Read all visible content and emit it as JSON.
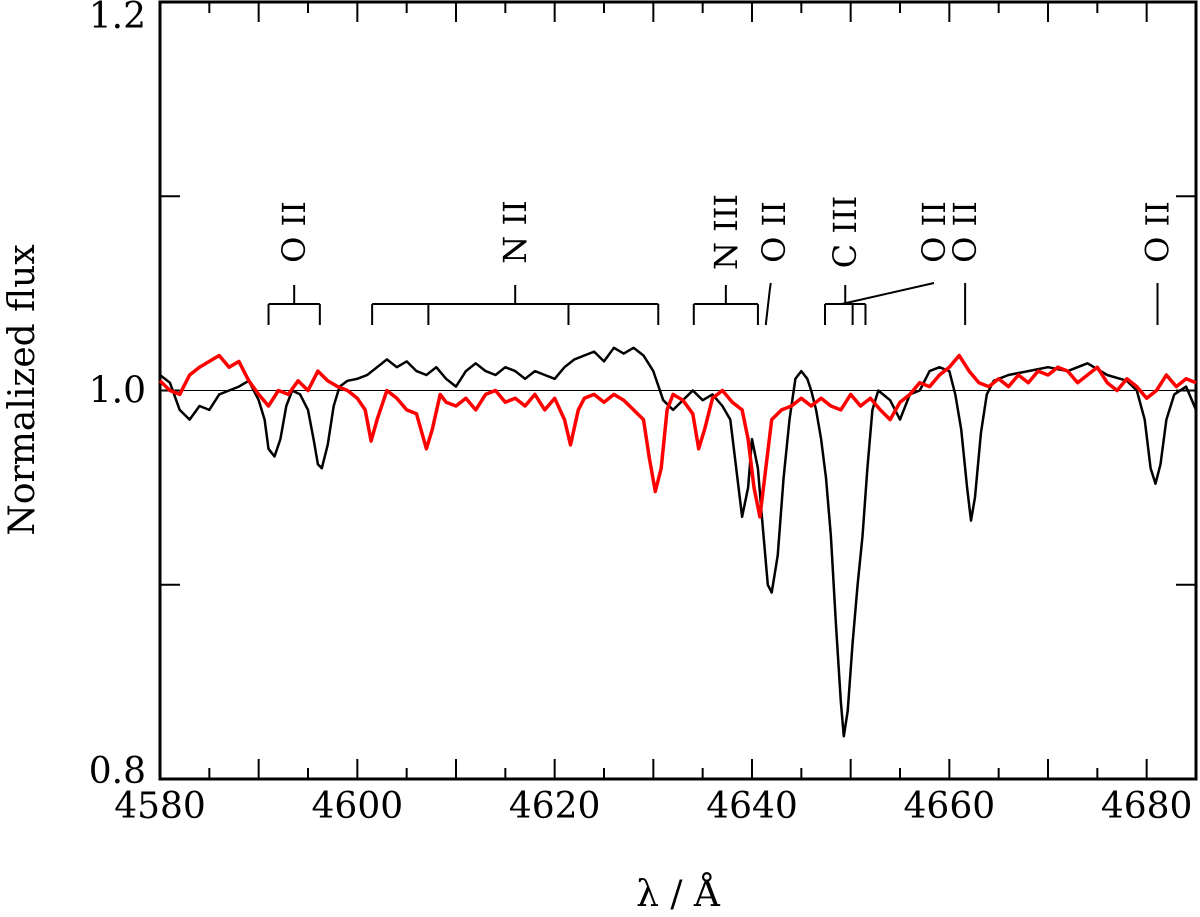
{
  "chart_data": {
    "type": "line",
    "title": "",
    "xlabel": "λ / Å",
    "ylabel": "Normalized flux",
    "xlim": [
      4580,
      4685
    ],
    "ylim": [
      0.8,
      1.2
    ],
    "x_ticks": [
      {
        "value": 4580,
        "label": "4580"
      },
      {
        "value": 4600,
        "label": "4600"
      },
      {
        "value": 4620,
        "label": "4620"
      },
      {
        "value": 4640,
        "label": "4640"
      },
      {
        "value": 4660,
        "label": "4660"
      },
      {
        "value": 4680,
        "label": "4680"
      }
    ],
    "y_ticks": [
      {
        "value": 0.8,
        "label": "0.8"
      },
      {
        "value": 1.0,
        "label": "1.0"
      },
      {
        "value": 1.2,
        "label": "1.2"
      }
    ],
    "continuum": 1.0,
    "grid": false,
    "legend": "none",
    "series": [
      {
        "color": "#000000",
        "points": [
          [
            4580,
            1.008
          ],
          [
            4581,
            1.004
          ],
          [
            4582,
            0.99
          ],
          [
            4583,
            0.985
          ],
          [
            4584,
            0.992
          ],
          [
            4585,
            0.99
          ],
          [
            4586,
            0.998
          ],
          [
            4587,
            1.0
          ],
          [
            4588,
            1.002
          ],
          [
            4589,
            1.005
          ],
          [
            4590,
            0.995
          ],
          [
            4590.6,
            0.985
          ],
          [
            4591,
            0.97
          ],
          [
            4591.6,
            0.966
          ],
          [
            4592.2,
            0.975
          ],
          [
            4592.8,
            0.992
          ],
          [
            4593.4,
            1.0
          ],
          [
            4594.2,
            0.998
          ],
          [
            4595,
            0.99
          ],
          [
            4595.6,
            0.974
          ],
          [
            4596,
            0.962
          ],
          [
            4596.4,
            0.96
          ],
          [
            4597,
            0.972
          ],
          [
            4597.6,
            0.992
          ],
          [
            4598.2,
            1.002
          ],
          [
            4599,
            1.005
          ],
          [
            4600,
            1.006
          ],
          [
            4601,
            1.008
          ],
          [
            4602,
            1.012
          ],
          [
            4603,
            1.016
          ],
          [
            4604,
            1.012
          ],
          [
            4605,
            1.015
          ],
          [
            4606,
            1.01
          ],
          [
            4607,
            1.008
          ],
          [
            4608,
            1.012
          ],
          [
            4609,
            1.006
          ],
          [
            4610,
            1.002
          ],
          [
            4611,
            1.01
          ],
          [
            4612,
            1.014
          ],
          [
            4613,
            1.01
          ],
          [
            4614,
            1.008
          ],
          [
            4615,
            1.012
          ],
          [
            4616,
            1.01
          ],
          [
            4617,
            1.006
          ],
          [
            4618,
            1.01
          ],
          [
            4619,
            1.008
          ],
          [
            4620,
            1.006
          ],
          [
            4621,
            1.012
          ],
          [
            4622,
            1.016
          ],
          [
            4623,
            1.018
          ],
          [
            4624,
            1.02
          ],
          [
            4625,
            1.015
          ],
          [
            4626,
            1.022
          ],
          [
            4627,
            1.019
          ],
          [
            4628,
            1.022
          ],
          [
            4629,
            1.018
          ],
          [
            4630,
            1.01
          ],
          [
            4631,
            0.995
          ],
          [
            4632,
            0.99
          ],
          [
            4633,
            0.995
          ],
          [
            4634,
            1.0
          ],
          [
            4635,
            0.995
          ],
          [
            4636,
            0.998
          ],
          [
            4637,
            0.992
          ],
          [
            4637.8,
            0.985
          ],
          [
            4638.4,
            0.96
          ],
          [
            4639,
            0.935
          ],
          [
            4639.6,
            0.95
          ],
          [
            4640,
            0.975
          ],
          [
            4640.6,
            0.96
          ],
          [
            4641,
            0.935
          ],
          [
            4641.6,
            0.9
          ],
          [
            4642,
            0.896
          ],
          [
            4642.6,
            0.915
          ],
          [
            4643.2,
            0.955
          ],
          [
            4643.8,
            0.985
          ],
          [
            4644.4,
            1.006
          ],
          [
            4645,
            1.01
          ],
          [
            4645.6,
            1.006
          ],
          [
            4646,
            1.0
          ],
          [
            4646.5,
            0.99
          ],
          [
            4647,
            0.975
          ],
          [
            4647.5,
            0.955
          ],
          [
            4648,
            0.925
          ],
          [
            4648.5,
            0.88
          ],
          [
            4649,
            0.84
          ],
          [
            4649.3,
            0.822
          ],
          [
            4649.7,
            0.835
          ],
          [
            4650.2,
            0.87
          ],
          [
            4650.7,
            0.9
          ],
          [
            4651.2,
            0.925
          ],
          [
            4651.7,
            0.96
          ],
          [
            4652.2,
            0.99
          ],
          [
            4652.8,
            1.0
          ],
          [
            4654,
            0.995
          ],
          [
            4655,
            0.985
          ],
          [
            4656,
            0.998
          ],
          [
            4657,
            1.0
          ],
          [
            4658,
            1.01
          ],
          [
            4659,
            1.012
          ],
          [
            4660,
            1.01
          ],
          [
            4660.6,
            0.998
          ],
          [
            4661.2,
            0.98
          ],
          [
            4661.8,
            0.95
          ],
          [
            4662.2,
            0.933
          ],
          [
            4662.6,
            0.945
          ],
          [
            4663.2,
            0.978
          ],
          [
            4663.8,
            0.998
          ],
          [
            4664.5,
            1.005
          ],
          [
            4666,
            1.008
          ],
          [
            4668,
            1.01
          ],
          [
            4670,
            1.012
          ],
          [
            4672,
            1.01
          ],
          [
            4674,
            1.014
          ],
          [
            4676,
            1.008
          ],
          [
            4678,
            1.005
          ],
          [
            4679,
            1.0
          ],
          [
            4679.8,
            0.985
          ],
          [
            4680.4,
            0.96
          ],
          [
            4680.9,
            0.952
          ],
          [
            4681.4,
            0.962
          ],
          [
            4682,
            0.985
          ],
          [
            4682.8,
            0.998
          ],
          [
            4684,
            1.002
          ],
          [
            4685,
            0.99
          ]
        ]
      },
      {
        "color": "#ff0000",
        "points": [
          [
            4580,
            1.005
          ],
          [
            4581,
            1.0
          ],
          [
            4582,
            0.998
          ],
          [
            4583,
            1.008
          ],
          [
            4584,
            1.012
          ],
          [
            4585,
            1.015
          ],
          [
            4586,
            1.018
          ],
          [
            4587,
            1.012
          ],
          [
            4588,
            1.015
          ],
          [
            4589,
            1.005
          ],
          [
            4590,
            0.998
          ],
          [
            4591,
            0.992
          ],
          [
            4592,
            1.0
          ],
          [
            4593,
            0.998
          ],
          [
            4594,
            1.005
          ],
          [
            4595,
            1.0
          ],
          [
            4596,
            1.01
          ],
          [
            4597,
            1.005
          ],
          [
            4598,
            1.002
          ],
          [
            4599,
            1.0
          ],
          [
            4600,
            0.996
          ],
          [
            4600.8,
            0.99
          ],
          [
            4601.4,
            0.974
          ],
          [
            4602,
            0.985
          ],
          [
            4603,
            1.0
          ],
          [
            4604,
            0.996
          ],
          [
            4605,
            0.99
          ],
          [
            4606,
            0.988
          ],
          [
            4607,
            0.97
          ],
          [
            4607.6,
            0.98
          ],
          [
            4608.4,
            0.998
          ],
          [
            4609,
            0.994
          ],
          [
            4610,
            0.992
          ],
          [
            4611,
            0.996
          ],
          [
            4612,
            0.99
          ],
          [
            4613,
            0.998
          ],
          [
            4614,
            1.0
          ],
          [
            4615,
            0.994
          ],
          [
            4616,
            0.996
          ],
          [
            4617,
            0.992
          ],
          [
            4618,
            0.998
          ],
          [
            4619,
            0.99
          ],
          [
            4620,
            0.996
          ],
          [
            4621,
            0.985
          ],
          [
            4621.6,
            0.972
          ],
          [
            4622.4,
            0.99
          ],
          [
            4623,
            0.996
          ],
          [
            4624,
            0.998
          ],
          [
            4625,
            0.994
          ],
          [
            4626,
            0.998
          ],
          [
            4627,
            0.995
          ],
          [
            4628,
            0.99
          ],
          [
            4629,
            0.985
          ],
          [
            4629.6,
            0.965
          ],
          [
            4630.2,
            0.948
          ],
          [
            4630.8,
            0.96
          ],
          [
            4631.4,
            0.99
          ],
          [
            4632,
            0.998
          ],
          [
            4633,
            0.995
          ],
          [
            4634,
            0.988
          ],
          [
            4634.6,
            0.97
          ],
          [
            4635.2,
            0.98
          ],
          [
            4636,
            0.996
          ],
          [
            4637,
            1.0
          ],
          [
            4638,
            0.994
          ],
          [
            4639,
            0.99
          ],
          [
            4639.6,
            0.975
          ],
          [
            4640.2,
            0.95
          ],
          [
            4640.8,
            0.935
          ],
          [
            4641.4,
            0.96
          ],
          [
            4642,
            0.985
          ],
          [
            4643,
            0.99
          ],
          [
            4644,
            0.992
          ],
          [
            4645,
            0.996
          ],
          [
            4646,
            0.992
          ],
          [
            4647,
            0.996
          ],
          [
            4648,
            0.992
          ],
          [
            4649,
            0.99
          ],
          [
            4650,
            0.998
          ],
          [
            4651,
            0.992
          ],
          [
            4652,
            0.996
          ],
          [
            4653,
            0.99
          ],
          [
            4654,
            0.985
          ],
          [
            4655,
            0.994
          ],
          [
            4656,
            0.998
          ],
          [
            4657,
            1.004
          ],
          [
            4658,
            1.002
          ],
          [
            4659,
            1.008
          ],
          [
            4660,
            1.012
          ],
          [
            4661,
            1.018
          ],
          [
            4662,
            1.01
          ],
          [
            4663,
            1.004
          ],
          [
            4664,
            1.002
          ],
          [
            4665,
            1.006
          ],
          [
            4666,
            1.002
          ],
          [
            4667,
            1.008
          ],
          [
            4668,
            1.004
          ],
          [
            4669,
            1.01
          ],
          [
            4670,
            1.008
          ],
          [
            4671,
            1.012
          ],
          [
            4672,
            1.01
          ],
          [
            4673,
            1.004
          ],
          [
            4674,
            1.008
          ],
          [
            4675,
            1.012
          ],
          [
            4676,
            1.004
          ],
          [
            4677,
            1.0
          ],
          [
            4678,
            1.006
          ],
          [
            4679,
            1.002
          ],
          [
            4680,
            0.996
          ],
          [
            4681,
            1.0
          ],
          [
            4682,
            1.008
          ],
          [
            4683,
            1.002
          ],
          [
            4684,
            1.006
          ],
          [
            4685,
            1.004
          ]
        ]
      }
    ],
    "line_ids": [
      {
        "label": "O II",
        "group": [
          4591.0,
          4596.2
        ]
      },
      {
        "label": "N II",
        "group": [
          4601.5,
          4607.2,
          4621.4,
          4630.5
        ]
      },
      {
        "label": "N III",
        "group": [
          4634.1,
          4640.6
        ]
      },
      {
        "label": "O II",
        "single": 4641.8
      },
      {
        "label": "C III",
        "group": [
          4647.4,
          4650.2,
          4651.5
        ]
      },
      {
        "label": "O II",
        "single": 4649.1
      },
      {
        "label": "O II",
        "single": 4661.6
      },
      {
        "label": "O II",
        "single": 4681.1
      }
    ]
  }
}
